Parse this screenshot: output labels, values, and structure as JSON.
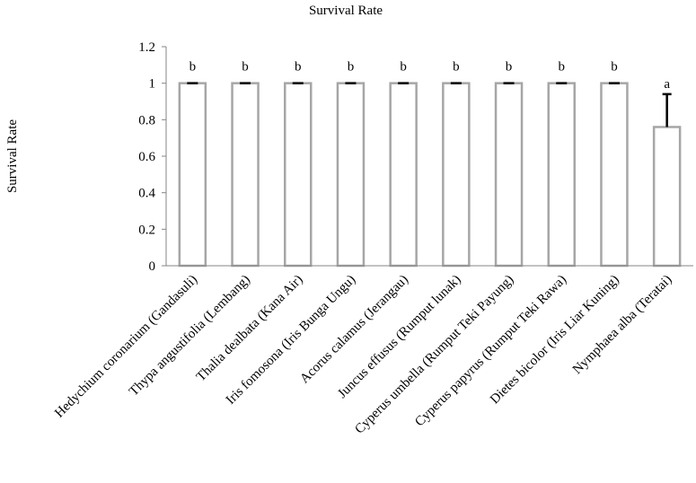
{
  "chart_data": {
    "type": "bar",
    "title": "Survival Rate",
    "xlabel": "",
    "ylabel": "Survival Rate",
    "ylim": [
      0,
      1.2
    ],
    "yticks": [
      0,
      0.2,
      0.4,
      0.6,
      0.8,
      1,
      1.2
    ],
    "ytick_labels": [
      "0",
      "0.2",
      "0.4",
      "0.6",
      "0.8",
      "1",
      "1.2"
    ],
    "grid": false,
    "legend": "none",
    "categories": [
      "Hedychium coronarium (Gandasuli)",
      "Thypa angustifolia (Lembang)",
      "Thalia dealbata (Kana Air)",
      "Iris fomosona (Iris Bunga Ungu)",
      "Acorus calamus (Jerangau)",
      "Juncus effusus (Rumput lunak)",
      "Cyperus umbella (Rumput Teki Payung)",
      "Cyperus papyrus (Rumput Teki Rawa)",
      "Dietes bicolor (Iris Liar Kuning)",
      "Nymphaea alba (Teratai)"
    ],
    "values": [
      1,
      1,
      1,
      1,
      1,
      1,
      1,
      1,
      1,
      0.76
    ],
    "error_plus": [
      0,
      0,
      0,
      0,
      0,
      0,
      0,
      0,
      0,
      0.18
    ],
    "significance_labels": [
      "b",
      "b",
      "b",
      "b",
      "b",
      "b",
      "b",
      "b",
      "b",
      "a"
    ],
    "colors": {
      "bar_fill": "#ffffff",
      "bar_stroke": "#a6a6a6",
      "axis": "#868686",
      "error_bar": "#000000",
      "text": "#000000"
    }
  }
}
